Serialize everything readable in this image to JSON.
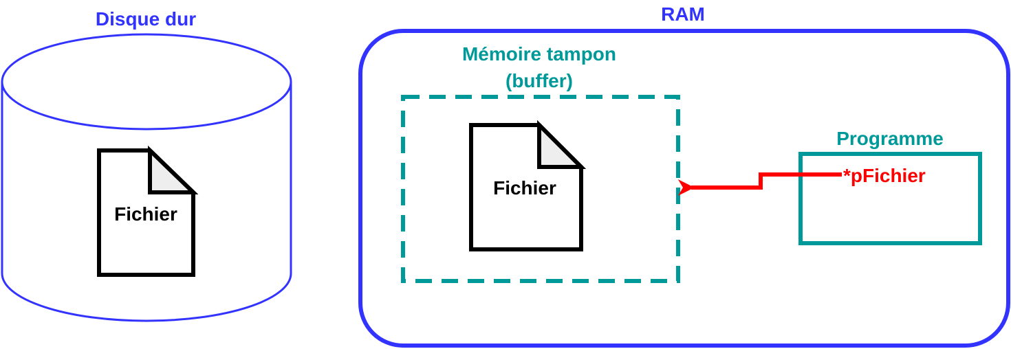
{
  "disk": {
    "title": "Disque dur",
    "file_label": "Fichier"
  },
  "ram": {
    "title": "RAM",
    "buffer": {
      "title_line1": "Mémoire tampon",
      "title_line2": "(buffer)",
      "file_label": "Fichier"
    },
    "program": {
      "title": "Programme",
      "pointer_label": "*pFichier"
    }
  },
  "colors": {
    "disk": "#3333ff",
    "ram": "#3333ff",
    "buffer": "#009999",
    "program": "#009999",
    "pointer": "#ff0000",
    "file": "#000000",
    "file_fold": "#eeeeee"
  },
  "icons": {
    "disk": "cylinder",
    "file": "document-with-folded-corner",
    "pointer": "arrow-left"
  }
}
